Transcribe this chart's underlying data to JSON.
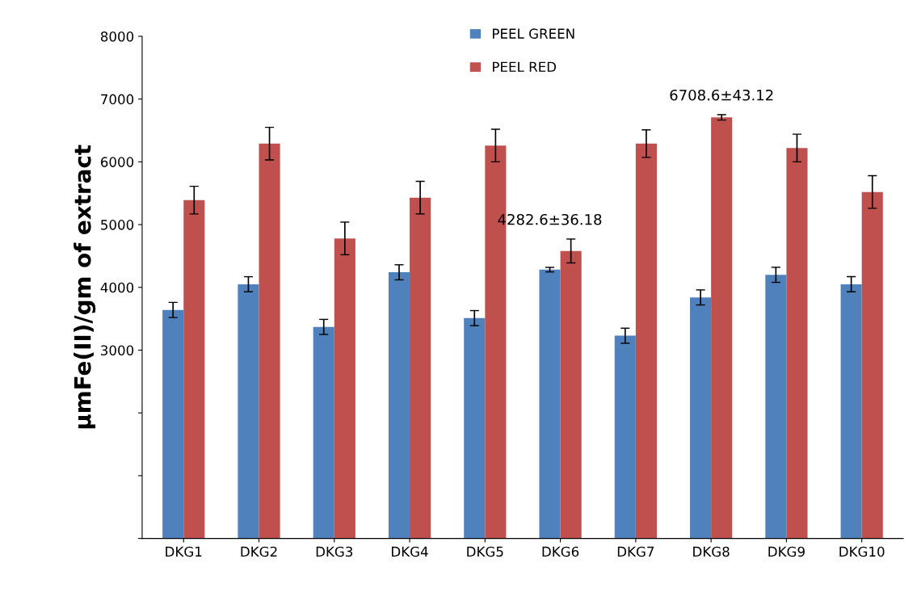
{
  "chart_data": {
    "type": "bar",
    "ylabel": "µmFe(II)/gm of extract",
    "categories": [
      "DKG1",
      "DKG2",
      "DKG3",
      "DKG4",
      "DKG5",
      "DKG6",
      "DKG7",
      "DKG8",
      "DKG9",
      "DKG10"
    ],
    "series": [
      {
        "name": "PEEL GREEN",
        "color": "#4f81bd",
        "values": [
          3640,
          4050,
          3370,
          4240,
          3510,
          4282.6,
          3230,
          3840,
          4200,
          4050
        ],
        "errors": [
          120,
          120,
          120,
          120,
          120,
          36.18,
          120,
          120,
          120,
          120
        ],
        "value_labels": [
          null,
          null,
          null,
          null,
          null,
          "4282.6±36.18",
          null,
          null,
          null,
          null
        ]
      },
      {
        "name": "PEEL RED",
        "color": "#c0504d",
        "values": [
          5390,
          6290,
          4780,
          5430,
          6260,
          4580,
          6290,
          6708.6,
          6220,
          5520
        ],
        "errors": [
          220,
          260,
          260,
          260,
          260,
          190,
          220,
          43.12,
          220,
          260
        ],
        "value_labels": [
          null,
          null,
          null,
          null,
          null,
          null,
          null,
          "6708.6±43.12",
          null,
          null
        ]
      }
    ],
    "ylim": [
      0,
      8000
    ],
    "yticks": [
      {
        "value": 0,
        "label": null
      },
      {
        "value": 1000,
        "label": null
      },
      {
        "value": 2000,
        "label": null
      },
      3000,
      4000,
      5000,
      6000,
      7000,
      8000
    ],
    "grid": false,
    "legend": "top"
  }
}
